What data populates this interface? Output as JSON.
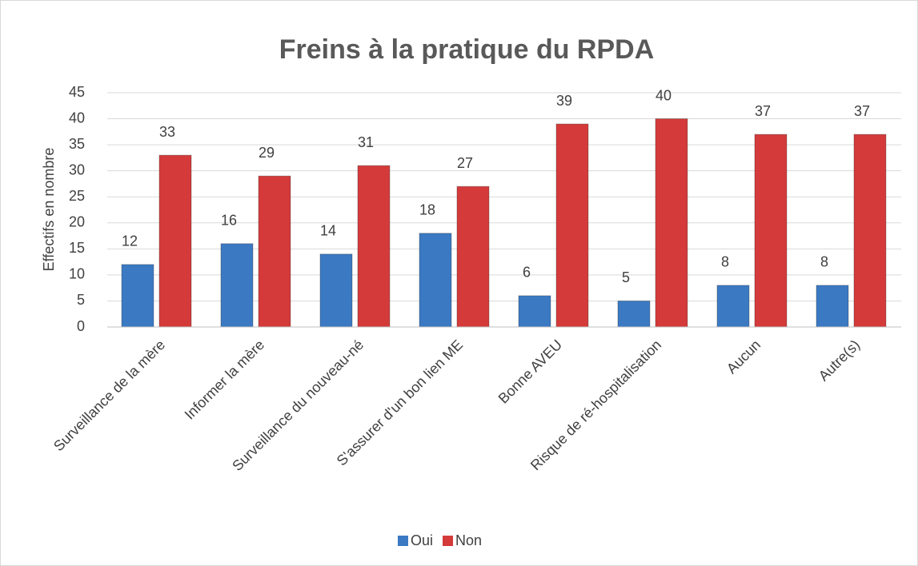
{
  "chart_data": {
    "type": "bar",
    "title": "Freins à la pratique du RPDA",
    "y_label": "Effectifs en nombre",
    "categories": [
      "Surveillance de la mère",
      "Informer la mère",
      "Surveillance du nouveau-né",
      "S'assurer d'un bon lien ME",
      "Bonne AVEU",
      "Risque de ré-hospitalisation",
      "Aucun",
      "Autre(s)"
    ],
    "series": [
      {
        "name": "Oui",
        "color": "#3b79c3",
        "values": [
          12,
          16,
          14,
          18,
          6,
          5,
          8,
          8
        ]
      },
      {
        "name": "Non",
        "color": "#d43a3a",
        "values": [
          33,
          29,
          31,
          27,
          39,
          40,
          37,
          37
        ]
      }
    ],
    "ylim": [
      0,
      45
    ],
    "yticks": [
      0,
      5,
      10,
      15,
      20,
      25,
      30,
      35,
      40,
      45
    ],
    "grid": true,
    "legend": "bottom"
  }
}
